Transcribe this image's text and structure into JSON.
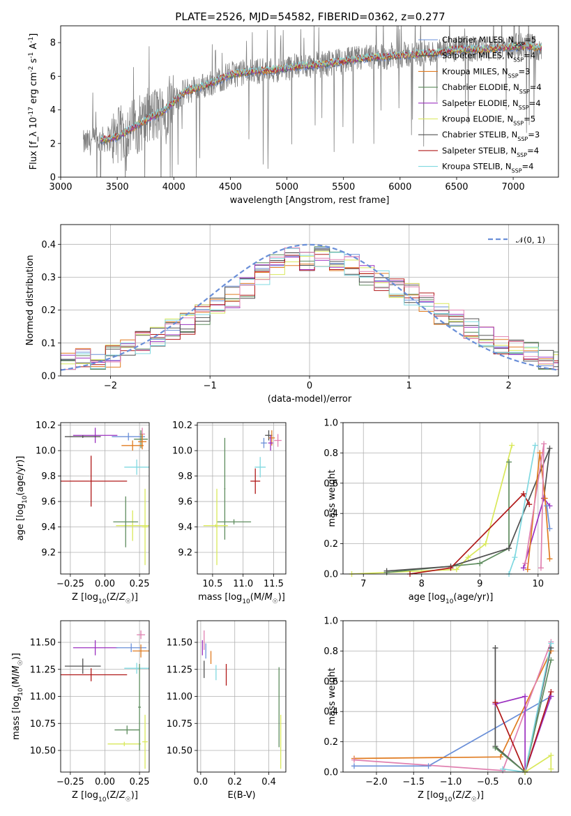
{
  "colors": {
    "series": [
      "#6a8fd8",
      "#555555",
      "#e07b20",
      "#5e8c5e",
      "#9b30c0",
      "#d9e85a",
      "#505050",
      "#b01818",
      "#7fd8e0",
      "#e080b0"
    ],
    "grid": "#b0b0b0",
    "observed": "#808080"
  },
  "chart_data": [
    {
      "type": "line",
      "title": "PLATE=2526, MJD=54582, FIBERID=0362, z=0.277",
      "xlabel": "wavelength [Angstrom, rest frame]",
      "ylabel": "Flux [f_λ 10^-17 erg cm^-2 s^-1 A^-1]",
      "xlim": [
        3000,
        7400
      ],
      "ylim": [
        0,
        9
      ],
      "xticks": [
        "3000",
        "3500",
        "4000",
        "4500",
        "5000",
        "5500",
        "6000",
        "6500",
        "7000"
      ],
      "yticks": [
        "0",
        "2",
        "4",
        "6",
        "8"
      ],
      "grid": false,
      "legend_position": "top-right",
      "legend": [
        {
          "label": "Chabrier MILES, N",
          "sub": "SSP",
          "tail": "=5",
          "color": "#6a8fd8"
        },
        {
          "label": "Salpeter MILES, N",
          "sub": "SSP",
          "tail": "=4",
          "color": "#555555"
        },
        {
          "label": "Kroupa MILES, N",
          "sub": "SSP",
          "tail": "=3",
          "color": "#e07b20"
        },
        {
          "label": "Chabrier ELODIE, N",
          "sub": "SSP",
          "tail": "=4",
          "color": "#5e8c5e"
        },
        {
          "label": "Salpeter ELODIE, N",
          "sub": "SSP",
          "tail": "=4",
          "color": "#9b30c0"
        },
        {
          "label": "Kroupa ELODIE, N",
          "sub": "SSP",
          "tail": "=5",
          "color": "#d9e85a"
        },
        {
          "label": "Chabrier STELIB, N",
          "sub": "SSP",
          "tail": "=3",
          "color": "#505050"
        },
        {
          "label": "Salpeter STELIB, N",
          "sub": "SSP",
          "tail": "=4",
          "color": "#b01818"
        },
        {
          "label": "Kroupa STELIB, N",
          "sub": "SSP",
          "tail": "=4",
          "color": "#7fd8e0"
        }
      ],
      "continuum": {
        "x": [
          3200,
          3350,
          3500,
          3700,
          3900,
          4000,
          4100,
          4300,
          4500,
          4700,
          4900,
          5100,
          5300,
          5500,
          5700,
          5900,
          6100,
          6300,
          6500,
          6700,
          6900,
          7100,
          7250
        ],
        "y": [
          2.0,
          2.2,
          2.4,
          3.2,
          3.9,
          4.5,
          5.1,
          5.5,
          6.1,
          6.3,
          6.4,
          6.6,
          6.7,
          6.9,
          7.1,
          7.2,
          7.3,
          7.4,
          7.6,
          7.6,
          7.7,
          7.8,
          7.7
        ]
      }
    },
    {
      "type": "step",
      "xlabel": "(data-model)/error",
      "ylabel": "Normed distribution",
      "xlim": [
        -2.5,
        2.5
      ],
      "ylim": [
        0,
        0.46
      ],
      "xticks": [
        "−2",
        "−1",
        "0",
        "1",
        "2"
      ],
      "yticks": [
        "0.0",
        "0.1",
        "0.2",
        "0.3",
        "0.4"
      ],
      "grid": true,
      "legend_position": "top-right",
      "legend": [
        {
          "label": "𝒩(0, 1)",
          "color": "#6a8fd8",
          "dashed": true
        }
      ],
      "bin_edges": [
        -2.5,
        -2.35,
        -2.2,
        -2.05,
        -1.9,
        -1.75,
        -1.6,
        -1.45,
        -1.3,
        -1.15,
        -1.0,
        -0.85,
        -0.7,
        -0.55,
        -0.4,
        -0.25,
        -0.1,
        0.05,
        0.2,
        0.35,
        0.5,
        0.65,
        0.8,
        0.95,
        1.1,
        1.25,
        1.4,
        1.55,
        1.7,
        1.85,
        2.0,
        2.15,
        2.3,
        2.45,
        2.5
      ],
      "base_density": [
        0.04,
        0.05,
        0.05,
        0.06,
        0.08,
        0.1,
        0.12,
        0.14,
        0.16,
        0.19,
        0.21,
        0.24,
        0.27,
        0.31,
        0.34,
        0.37,
        0.35,
        0.36,
        0.35,
        0.34,
        0.31,
        0.29,
        0.27,
        0.25,
        0.22,
        0.19,
        0.17,
        0.14,
        0.12,
        0.1,
        0.08,
        0.07,
        0.05,
        0.04
      ]
    },
    {
      "type": "errorbar",
      "xlabel": "Z [log10(Z/Z☉)]",
      "ylabel": "age [log10(age/yr)]",
      "xlim": [
        -0.32,
        0.32
      ],
      "ylim": [
        9.03,
        10.22
      ],
      "xticks": [
        "−0.25",
        "0.00",
        "0.25"
      ],
      "yticks": [
        "9.2",
        "9.4",
        "9.6",
        "9.8",
        "10.0",
        "10.2"
      ],
      "grid": true,
      "points": [
        {
          "x": 0.27,
          "y": 10.13,
          "xerr": 0.02,
          "yerr": 0.05,
          "color": "#e080b0"
        },
        {
          "x": -0.07,
          "y": 10.12,
          "xerr": 0.16,
          "yerr": 0.06,
          "color": "#9b30c0"
        },
        {
          "x": 0.17,
          "y": 10.11,
          "xerr": 0.12,
          "yerr": 0.03,
          "color": "#6a8fd8"
        },
        {
          "x": -0.16,
          "y": 10.11,
          "xerr": 0.13,
          "yerr": 0.01,
          "color": "#505050"
        },
        {
          "x": 0.26,
          "y": 10.09,
          "xerr": 0.05,
          "yerr": 0.07,
          "color": "#5e8c5e"
        },
        {
          "x": 0.27,
          "y": 10.07,
          "xerr": 0.03,
          "yerr": 0.06,
          "color": "#e07b20"
        },
        {
          "x": 0.2,
          "y": 10.04,
          "xerr": 0.08,
          "yerr": 0.04,
          "color": "#e07b20"
        },
        {
          "x": 0.23,
          "y": 9.87,
          "xerr": 0.09,
          "yerr": 0.06,
          "color": "#7fd8e0"
        },
        {
          "x": -0.1,
          "y": 9.76,
          "xerr": 0.26,
          "yerr": 0.2,
          "color": "#b01818"
        },
        {
          "x": 0.2,
          "y": 9.41,
          "xerr": 0.12,
          "yerr": 0.12,
          "color": "#d9e85a"
        },
        {
          "x": 0.15,
          "y": 9.44,
          "xerr": 0.09,
          "yerr": 0.2,
          "color": "#5e8c5e"
        },
        {
          "x": 0.29,
          "y": 9.4,
          "xerr": 0.02,
          "yerr": 0.3,
          "color": "#d9e85a"
        }
      ]
    },
    {
      "type": "errorbar",
      "xlabel": "mass [log10(M/M☉)]",
      "ylabel": "",
      "xlim": [
        10.25,
        11.7
      ],
      "ylim": [
        9.03,
        10.22
      ],
      "xticks": [
        "10.5",
        "11.0",
        "11.5"
      ],
      "yticks": [
        "9.2",
        "9.4",
        "9.6",
        "9.8",
        "10.0",
        "10.2"
      ],
      "grid": true,
      "points": [
        {
          "x": 11.42,
          "y": 10.12,
          "xerr": 0.06,
          "yerr": 0.04,
          "color": "#505050"
        },
        {
          "x": 11.47,
          "y": 10.1,
          "xerr": 0.05,
          "yerr": 0.06,
          "color": "#e07b20"
        },
        {
          "x": 11.57,
          "y": 10.08,
          "xerr": 0.06,
          "yerr": 0.05,
          "color": "#e080b0"
        },
        {
          "x": 11.45,
          "y": 10.06,
          "xerr": 0.04,
          "yerr": 0.06,
          "color": "#9b30c0"
        },
        {
          "x": 11.34,
          "y": 10.06,
          "xerr": 0.05,
          "yerr": 0.04,
          "color": "#6a8fd8"
        },
        {
          "x": 11.28,
          "y": 9.87,
          "xerr": 0.09,
          "yerr": 0.08,
          "color": "#7fd8e0"
        },
        {
          "x": 11.2,
          "y": 9.76,
          "xerr": 0.08,
          "yerr": 0.1,
          "color": "#b01818"
        },
        {
          "x": 10.7,
          "y": 9.7,
          "xerr": 0.01,
          "yerr": 0.4,
          "color": "#5e8c5e"
        },
        {
          "x": 10.85,
          "y": 9.44,
          "xerr": 0.28,
          "yerr": 0.02,
          "color": "#5e8c5e"
        },
        {
          "x": 10.55,
          "y": 9.41,
          "xerr": 0.2,
          "yerr": 0.01,
          "color": "#d9e85a"
        },
        {
          "x": 10.57,
          "y": 9.4,
          "xerr": 0.01,
          "yerr": 0.3,
          "color": "#d9e85a"
        }
      ]
    },
    {
      "type": "line",
      "xlabel": "age [log10(age/yr)]",
      "ylabel": "mass weight",
      "xlim": [
        6.65,
        10.35
      ],
      "ylim": [
        0,
        1
      ],
      "xticks": [
        "7",
        "8",
        "9",
        "10"
      ],
      "yticks": [
        "0.0",
        "0.2",
        "0.4",
        "0.6",
        "0.8",
        "1.0"
      ],
      "grid": true,
      "series": [
        {
          "color": "#d9e85a",
          "x": [
            6.8,
            8.6,
            8.8,
            9.1,
            9.55
          ],
          "y": [
            0.0,
            0.03,
            0.11,
            0.2,
            0.85
          ]
        },
        {
          "color": "#5e8c5e",
          "x": [
            7.4,
            9.0,
            9.5,
            9.5
          ],
          "y": [
            0.01,
            0.07,
            0.17,
            0.74
          ]
        },
        {
          "color": "#505050",
          "x": [
            7.4,
            8.5,
            9.5,
            10.2,
            10.1
          ],
          "y": [
            0.02,
            0.05,
            0.17,
            0.83,
            0.5
          ]
        },
        {
          "color": "#b01818",
          "x": [
            7.8,
            8.5,
            9.75,
            9.85
          ],
          "y": [
            0.0,
            0.04,
            0.53,
            0.46
          ]
        },
        {
          "color": "#9b30c0",
          "x": [
            9.75,
            10.1,
            10.2
          ],
          "y": [
            0.04,
            0.5,
            0.45
          ]
        },
        {
          "color": "#7fd8e0",
          "x": [
            9.5,
            9.6,
            9.95
          ],
          "y": [
            0.0,
            0.11,
            0.85
          ]
        },
        {
          "color": "#e07b20",
          "x": [
            9.82,
            10.03,
            10.12,
            10.2
          ],
          "y": [
            0.03,
            0.8,
            0.5,
            0.1
          ]
        },
        {
          "color": "#e080b0",
          "x": [
            9.78,
            10.1,
            10.05
          ],
          "y": [
            0.07,
            0.86,
            0.04
          ]
        },
        {
          "color": "#6a8fd8",
          "x": [
            10.15,
            10.2
          ],
          "y": [
            0.45,
            0.3
          ]
        }
      ]
    },
    {
      "type": "errorbar",
      "xlabel": "Z [log10(Z/Z☉)]",
      "ylabel": "mass [log10(M/M☉)]",
      "xlim": [
        -0.32,
        0.32
      ],
      "ylim": [
        10.3,
        11.7
      ],
      "xticks": [
        "−0.25",
        "0.00",
        "0.25"
      ],
      "yticks": [
        "10.50",
        "10.75",
        "11.00",
        "11.25",
        "11.50"
      ],
      "grid": true,
      "points": [
        {
          "x": 0.26,
          "y": 11.57,
          "xerr": 0.03,
          "yerr": 0.04,
          "color": "#e080b0"
        },
        {
          "x": -0.07,
          "y": 11.45,
          "xerr": 0.16,
          "yerr": 0.07,
          "color": "#9b30c0"
        },
        {
          "x": 0.19,
          "y": 11.45,
          "xerr": 0.11,
          "yerr": 0.04,
          "color": "#6a8fd8"
        },
        {
          "x": 0.26,
          "y": 11.42,
          "xerr": 0.06,
          "yerr": 0.06,
          "color": "#e07b20"
        },
        {
          "x": -0.16,
          "y": 11.28,
          "xerr": 0.13,
          "yerr": 0.07,
          "color": "#505050"
        },
        {
          "x": 0.23,
          "y": 11.26,
          "xerr": 0.09,
          "yerr": 0.05,
          "color": "#7fd8e0"
        },
        {
          "x": -0.1,
          "y": 11.2,
          "xerr": 0.26,
          "yerr": 0.06,
          "color": "#b01818"
        },
        {
          "x": 0.16,
          "y": 10.69,
          "xerr": 0.09,
          "yerr": 0.04,
          "color": "#5e8c5e"
        },
        {
          "x": 0.14,
          "y": 10.56,
          "xerr": 0.12,
          "yerr": 0.02,
          "color": "#d9e85a"
        },
        {
          "x": 0.29,
          "y": 10.58,
          "xerr": 0.02,
          "yerr": 0.25,
          "color": "#d9e85a"
        },
        {
          "x": 0.25,
          "y": 10.9,
          "xerr": 0.01,
          "yerr": 0.4,
          "color": "#5e8c5e"
        }
      ]
    },
    {
      "type": "errorbar",
      "xlabel": "E(B-V)",
      "ylabel": "",
      "xlim": [
        -0.02,
        0.5
      ],
      "ylim": [
        10.3,
        11.7
      ],
      "xticks": [
        "0.0",
        "0.2",
        "0.4"
      ],
      "yticks": [
        "10.50",
        "10.75",
        "11.00",
        "11.25",
        "11.50"
      ],
      "grid": true,
      "points": [
        {
          "x": 0.02,
          "y": 11.52,
          "xerr": 0,
          "yerr": 0.09,
          "color": "#e080b0"
        },
        {
          "x": 0.01,
          "y": 11.45,
          "xerr": 0,
          "yerr": 0.07,
          "color": "#9b30c0"
        },
        {
          "x": 0.03,
          "y": 11.42,
          "xerr": 0,
          "yerr": 0.07,
          "color": "#6a8fd8"
        },
        {
          "x": 0.06,
          "y": 11.36,
          "xerr": 0,
          "yerr": 0.06,
          "color": "#e07b20"
        },
        {
          "x": 0.02,
          "y": 11.25,
          "xerr": 0,
          "yerr": 0.08,
          "color": "#505050"
        },
        {
          "x": 0.09,
          "y": 11.22,
          "xerr": 0,
          "yerr": 0.07,
          "color": "#7fd8e0"
        },
        {
          "x": 0.15,
          "y": 11.2,
          "xerr": 0,
          "yerr": 0.1,
          "color": "#b01818"
        },
        {
          "x": 0.46,
          "y": 10.9,
          "xerr": 0,
          "yerr": 0.37,
          "color": "#5e8c5e"
        },
        {
          "x": 0.47,
          "y": 10.58,
          "xerr": 0,
          "yerr": 0.25,
          "color": "#d9e85a"
        }
      ]
    },
    {
      "type": "line",
      "xlabel": "Z [log10(Z/Z☉)]",
      "ylabel": "mass weight",
      "xlim": [
        -2.45,
        0.45
      ],
      "ylim": [
        0,
        1
      ],
      "xticks": [
        "−2.0",
        "−1.5",
        "−1.0",
        "−0.5",
        "0.0"
      ],
      "yticks": [
        "0.0",
        "0.2",
        "0.4",
        "0.6",
        "0.8",
        "1.0"
      ],
      "grid": true,
      "series": [
        {
          "color": "#6a8fd8",
          "x": [
            -2.3,
            -1.3,
            0.35
          ],
          "y": [
            0.04,
            0.04,
            0.5
          ]
        },
        {
          "color": "#e07b20",
          "x": [
            -2.3,
            -0.33,
            0.35
          ],
          "y": [
            0.09,
            0.1,
            0.8
          ]
        },
        {
          "color": "#e080b0",
          "x": [
            -2.3,
            -0.3,
            0.35
          ],
          "y": [
            0.08,
            0.01,
            0.86
          ]
        },
        {
          "color": "#505050",
          "x": [
            -0.4,
            -0.4,
            0.0,
            0.35
          ],
          "y": [
            0.82,
            0.17,
            0.0,
            0.82
          ]
        },
        {
          "color": "#9b30c0",
          "x": [
            -0.4,
            0.0,
            0.0,
            0.35
          ],
          "y": [
            0.45,
            0.5,
            0.0,
            0.5
          ]
        },
        {
          "color": "#b01818",
          "x": [
            -0.4,
            0.0,
            0.35
          ],
          "y": [
            0.46,
            0.0,
            0.53
          ]
        },
        {
          "color": "#5e8c5e",
          "x": [
            -0.4,
            0.0,
            0.35
          ],
          "y": [
            0.16,
            0.0,
            0.74
          ]
        },
        {
          "color": "#7fd8e0",
          "x": [
            -0.3,
            0.0,
            0.35
          ],
          "y": [
            0.02,
            0.0,
            0.85
          ]
        },
        {
          "color": "#d9e85a",
          "x": [
            0.0,
            0.35,
            0.35
          ],
          "y": [
            0.0,
            0.11,
            0.02
          ]
        }
      ]
    }
  ]
}
